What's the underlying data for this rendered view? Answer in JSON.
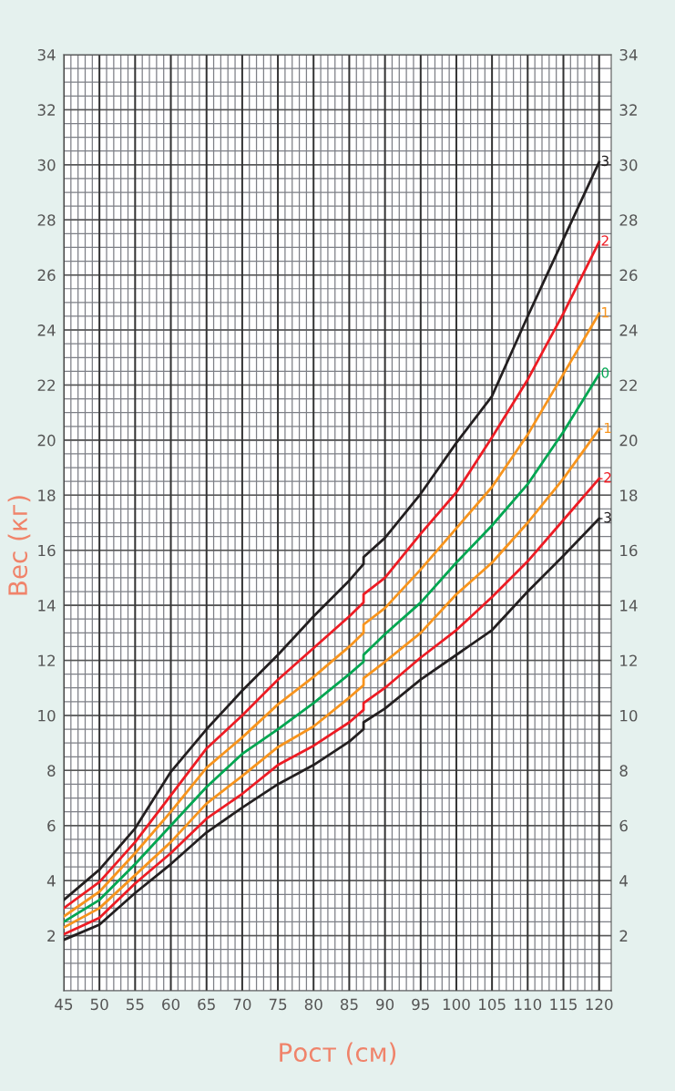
{
  "chart_data": {
    "type": "line",
    "xlabel": "Рост (см)",
    "ylabel": "Вес (кг)",
    "x": [
      45,
      50,
      55,
      60,
      65,
      70,
      75,
      80,
      85,
      87,
      87,
      90,
      95,
      100,
      105,
      110,
      115,
      120
    ],
    "series": [
      {
        "name": "3",
        "color": "#231f20",
        "values": [
          3.3,
          4.4,
          5.9,
          7.95,
          9.5,
          10.9,
          12.2,
          13.6,
          14.9,
          15.5,
          15.75,
          16.45,
          18.05,
          19.9,
          21.6,
          24.5,
          27.3,
          30.1
        ]
      },
      {
        "name": "2",
        "color": "#ed1c24",
        "values": [
          3.0,
          3.95,
          5.4,
          7.1,
          8.8,
          10.0,
          11.3,
          12.45,
          13.6,
          14.1,
          14.4,
          15.0,
          16.6,
          18.1,
          20.1,
          22.2,
          24.6,
          27.2
        ]
      },
      {
        "name": "1",
        "color": "#f7941d",
        "values": [
          2.7,
          3.6,
          5.0,
          6.5,
          8.1,
          9.2,
          10.4,
          11.4,
          12.5,
          13.0,
          13.3,
          13.9,
          15.3,
          16.8,
          18.3,
          20.2,
          22.4,
          24.6
        ]
      },
      {
        "name": "0",
        "color": "#00a651",
        "values": [
          2.5,
          3.3,
          4.6,
          6.0,
          7.4,
          8.6,
          9.5,
          10.45,
          11.5,
          11.95,
          12.2,
          12.95,
          14.1,
          15.55,
          16.9,
          18.4,
          20.3,
          22.4
        ]
      },
      {
        "name": "-1",
        "color": "#f7941d",
        "values": [
          2.3,
          3.0,
          4.2,
          5.4,
          6.8,
          7.8,
          8.85,
          9.6,
          10.65,
          11.1,
          11.35,
          11.95,
          13.0,
          14.4,
          15.55,
          17.0,
          18.6,
          20.4
        ]
      },
      {
        "name": "-2",
        "color": "#ed1c24",
        "values": [
          2.05,
          2.65,
          3.9,
          5.0,
          6.25,
          7.15,
          8.2,
          8.9,
          9.75,
          10.2,
          10.45,
          11.0,
          12.1,
          13.1,
          14.3,
          15.6,
          17.1,
          18.6
        ]
      },
      {
        "name": "-3",
        "color": "#231f20",
        "values": [
          1.85,
          2.4,
          3.55,
          4.6,
          5.75,
          6.65,
          7.5,
          8.2,
          9.05,
          9.5,
          9.75,
          10.25,
          11.3,
          12.2,
          13.1,
          14.5,
          15.8,
          17.15
        ]
      }
    ],
    "xlim": [
      45,
      121.7
    ],
    "xticks": [
      45,
      50,
      55,
      60,
      65,
      70,
      75,
      80,
      85,
      90,
      95,
      100,
      105,
      110,
      115,
      120
    ],
    "ylim": [
      0,
      34
    ],
    "yticks": [
      2,
      4,
      6,
      8,
      10,
      12,
      14,
      16,
      18,
      20,
      22,
      24,
      26,
      28,
      30,
      32,
      34
    ],
    "y2lim": [
      0,
      34
    ],
    "y2ticks": [
      2,
      4,
      6,
      8,
      10,
      12,
      14,
      16,
      18,
      20,
      22,
      24,
      26,
      28,
      30,
      32,
      34
    ],
    "grid": true,
    "marker": "none",
    "line_style": "solid"
  }
}
